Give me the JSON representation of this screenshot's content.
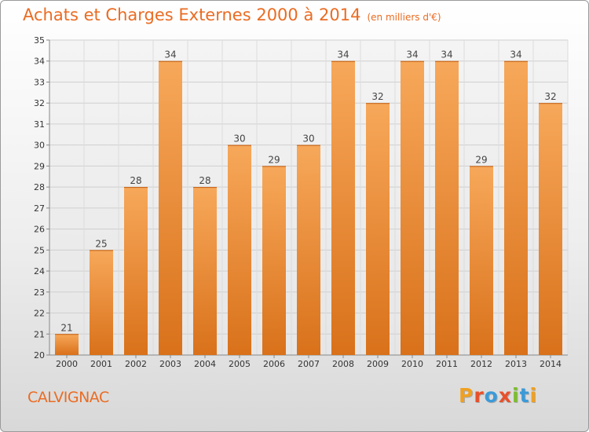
{
  "header": {
    "title": "Achats et Charges Externes 2000 à 2014",
    "unit": "(en milliers d'€)"
  },
  "footer": {
    "town": "CALVIGNAC",
    "logo": [
      "P",
      "r",
      "o",
      "x",
      "i",
      "t",
      "i"
    ],
    "logo_colors": [
      "#f0a020",
      "#e8502a",
      "#3a9ad9",
      "#e8502a",
      "#7cbd2e",
      "#3a9ad9",
      "#f0a020"
    ]
  },
  "colors": {
    "bar_light": "#f7a85a",
    "bar_dark": "#d9711a",
    "accent": "#ea6c23"
  },
  "chart_data": {
    "type": "bar",
    "title": "Achats et Charges Externes 2000 à 2014",
    "subtitle": "(en milliers d'€)",
    "xlabel": "",
    "ylabel": "",
    "categories": [
      "2000",
      "2001",
      "2002",
      "2003",
      "2004",
      "2005",
      "2006",
      "2007",
      "2008",
      "2009",
      "2010",
      "2011",
      "2012",
      "2013",
      "2014"
    ],
    "values": [
      21,
      25,
      28,
      34,
      28,
      30,
      29,
      30,
      34,
      32,
      34,
      34,
      29,
      34,
      32
    ],
    "ylim": [
      20,
      35
    ],
    "yticks": [
      20,
      21,
      22,
      23,
      24,
      25,
      26,
      27,
      28,
      29,
      30,
      31,
      32,
      33,
      34,
      35
    ],
    "grid": true,
    "legend": "none"
  }
}
